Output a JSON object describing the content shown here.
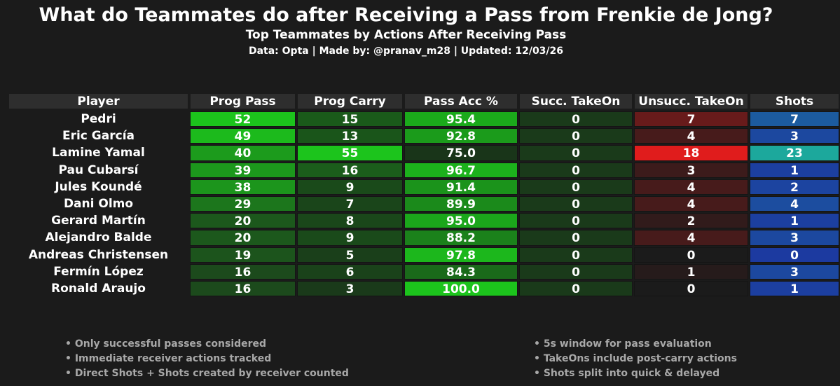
{
  "title": "What do Teammates do after Receiving a Pass from Frenkie de Jong?",
  "subtitle": "Top Teammates by Actions After Receiving Pass",
  "credits": "Data: Opta | Made by: @pranav_m28 | Updated: 12/03/26",
  "chart_data": {
    "type": "table",
    "columns": [
      "Player",
      "Prog Pass",
      "Prog Carry",
      "Pass Acc %",
      "Succ. TakeOn",
      "Unsucc. TakeOn",
      "Shots"
    ],
    "rows": [
      {
        "player": "Pedri",
        "values": [
          "52",
          "15",
          "95.4",
          "0",
          "7",
          "7"
        ]
      },
      {
        "player": "Eric García",
        "values": [
          "49",
          "13",
          "92.8",
          "0",
          "4",
          "3"
        ]
      },
      {
        "player": "Lamine Yamal",
        "values": [
          "40",
          "55",
          "75.0",
          "0",
          "18",
          "23"
        ]
      },
      {
        "player": "Pau Cubarsí",
        "values": [
          "39",
          "16",
          "96.7",
          "0",
          "3",
          "1"
        ]
      },
      {
        "player": "Jules Koundé",
        "values": [
          "38",
          "9",
          "91.4",
          "0",
          "4",
          "2"
        ]
      },
      {
        "player": "Dani Olmo",
        "values": [
          "29",
          "7",
          "89.9",
          "0",
          "4",
          "4"
        ]
      },
      {
        "player": "Gerard Martín",
        "values": [
          "20",
          "8",
          "95.0",
          "0",
          "2",
          "1"
        ]
      },
      {
        "player": "Alejandro Balde",
        "values": [
          "20",
          "9",
          "88.2",
          "0",
          "4",
          "3"
        ]
      },
      {
        "player": "Andreas Christensen",
        "values": [
          "19",
          "5",
          "97.8",
          "0",
          "0",
          "0"
        ]
      },
      {
        "player": "Fermín López",
        "values": [
          "16",
          "6",
          "84.3",
          "0",
          "1",
          "3"
        ]
      },
      {
        "player": "Ronald Araujo",
        "values": [
          "16",
          "3",
          "100.0",
          "0",
          "0",
          "1"
        ]
      }
    ],
    "color_scales": {
      "Prog Pass": {
        "range": [
          16,
          52
        ],
        "low": "#1c4a1c",
        "high": "#1cc41c"
      },
      "Prog Carry": {
        "range": [
          3,
          55
        ],
        "low": "#1a3a1a",
        "high": "#1cc41c"
      },
      "Pass Acc %": {
        "range": [
          75,
          100
        ],
        "low": "#193519",
        "high": "#1cc41c"
      },
      "Succ. TakeOn": {
        "range": [
          0,
          0
        ],
        "low": "#1a3a1a",
        "high": "#1a3a1a"
      },
      "Unsucc. TakeOn": {
        "range": [
          0,
          18
        ],
        "low": "#1b1b1b",
        "high": "#e01c1c"
      },
      "Shots": {
        "range": [
          0,
          23
        ],
        "low": "#1c3aa0",
        "high": "#1ca89c"
      }
    },
    "header_color": "#2e2e2e"
  },
  "notes_left": [
    "• Only successful passes considered",
    "• Immediate receiver actions tracked",
    "• Direct Shots + Shots created by receiver counted"
  ],
  "notes_right": [
    "• 5s window for pass evaluation",
    "• TakeOns include post-carry actions",
    "• Shots split into quick & delayed"
  ]
}
